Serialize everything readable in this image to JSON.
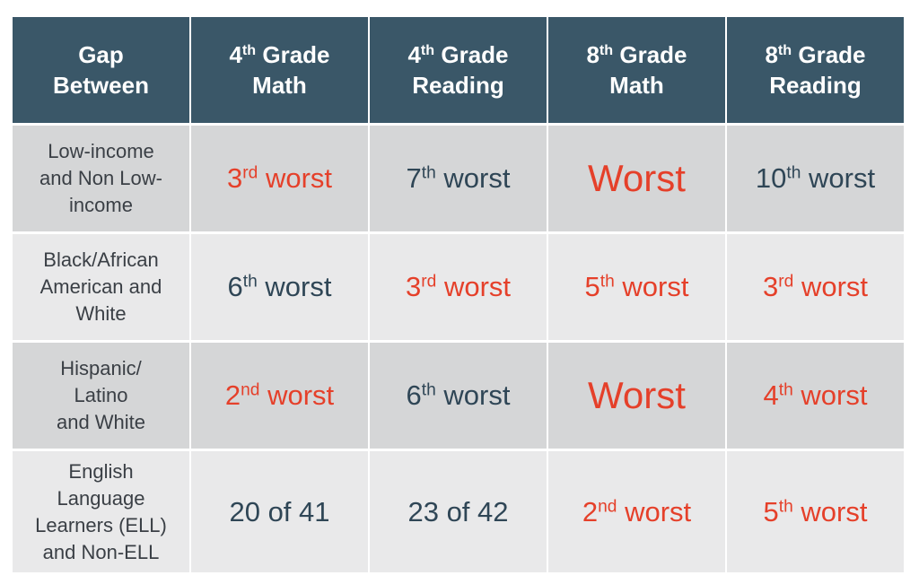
{
  "header": {
    "gap": [
      "Gap",
      "Between"
    ],
    "columns": [
      {
        "num": "4",
        "sup": "th",
        "line1": "Grade",
        "line2": "Math"
      },
      {
        "num": "4",
        "sup": "th",
        "line1": "Grade",
        "line2": "Reading"
      },
      {
        "num": "8",
        "sup": "th",
        "line1": "Grade",
        "line2": "Math"
      },
      {
        "num": "8",
        "sup": "th",
        "line1": "Grade",
        "line2": "Reading"
      }
    ]
  },
  "rows": [
    {
      "label": [
        "Low-income",
        "and Non Low-",
        "income"
      ],
      "cells": [
        {
          "num": "3",
          "sup": "rd",
          "word": "worst",
          "color": "red"
        },
        {
          "num": "7",
          "sup": "th",
          "word": "worst",
          "color": "dark"
        },
        {
          "num": "",
          "sup": "",
          "word": "Worst",
          "color": "red",
          "big": true
        },
        {
          "num": "10",
          "sup": "th",
          "word": "worst",
          "color": "dark"
        }
      ]
    },
    {
      "label": [
        "Black/African",
        "American and",
        "White"
      ],
      "cells": [
        {
          "num": "6",
          "sup": "th",
          "word": "worst",
          "color": "dark"
        },
        {
          "num": "3",
          "sup": "rd",
          "word": "worst",
          "color": "red"
        },
        {
          "num": "5",
          "sup": "th",
          "word": "worst",
          "color": "red"
        },
        {
          "num": "3",
          "sup": "rd",
          "word": "worst",
          "color": "red"
        }
      ]
    },
    {
      "label": [
        "Hispanic/",
        "Latino",
        "and White"
      ],
      "cells": [
        {
          "num": "2",
          "sup": "nd",
          "word": "worst",
          "color": "red"
        },
        {
          "num": "6",
          "sup": "th",
          "word": "worst",
          "color": "dark"
        },
        {
          "num": "",
          "sup": "",
          "word": "Worst",
          "color": "red",
          "big": true
        },
        {
          "num": "4",
          "sup": "th",
          "word": "worst",
          "color": "red"
        }
      ]
    },
    {
      "label": [
        "English",
        "Language",
        "Learners (ELL)",
        "and Non-ELL"
      ],
      "cells": [
        {
          "num": "",
          "sup": "",
          "word": "20 of 41",
          "color": "dark"
        },
        {
          "num": "",
          "sup": "",
          "word": "23 of 42",
          "color": "dark"
        },
        {
          "num": "2",
          "sup": "nd",
          "word": "worst",
          "color": "red"
        },
        {
          "num": "5",
          "sup": "th",
          "word": "worst",
          "color": "red"
        }
      ]
    }
  ],
  "colors": {
    "header_bg": "#3a5768",
    "header_text": "#ffffff",
    "row_odd_bg": "#d5d6d7",
    "row_even_bg": "#e9e9ea",
    "red": "#e5402a",
    "dark": "#2f4656"
  }
}
